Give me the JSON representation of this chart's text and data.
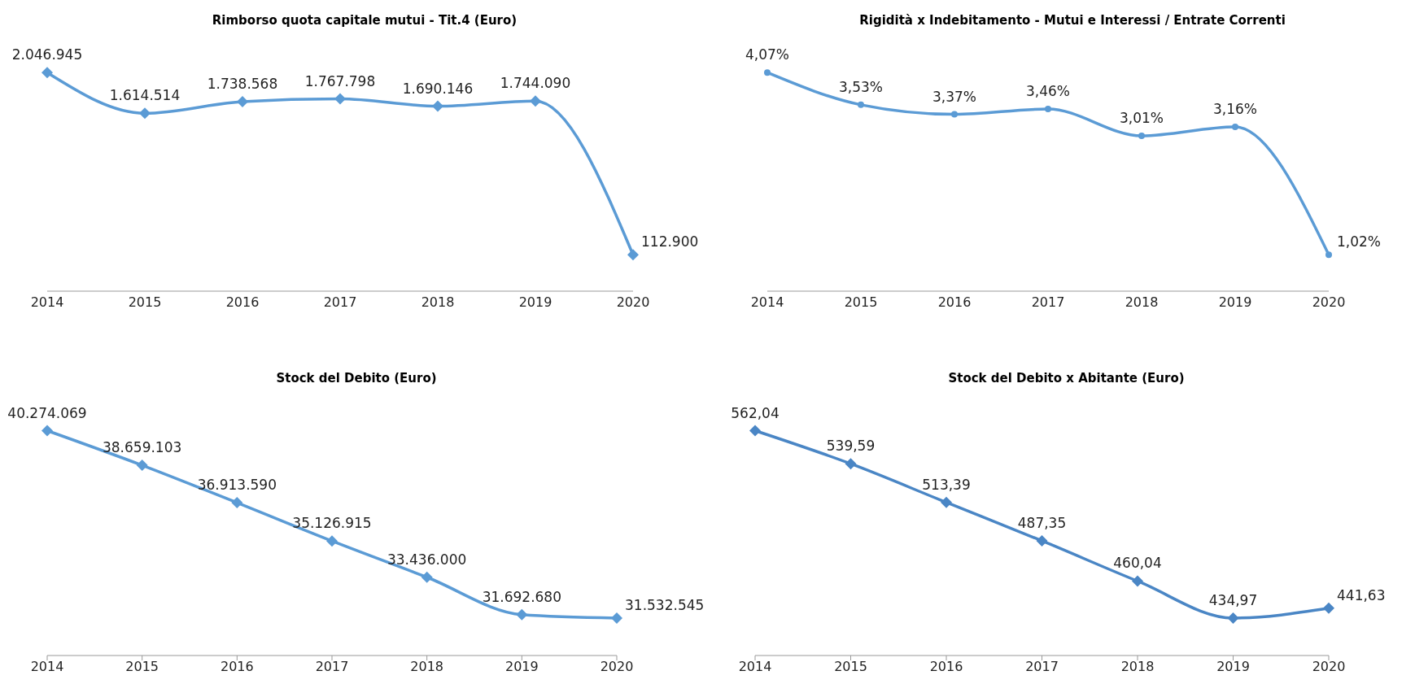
{
  "chart_data": [
    {
      "type": "line",
      "title": "Rimborso quota capitale mutui - Tit.4 (Euro)",
      "categories": [
        "2014",
        "2015",
        "2016",
        "2017",
        "2018",
        "2019",
        "2020"
      ],
      "marker": "diamond",
      "line_style": "solid",
      "series": [
        {
          "color": "#5b9bd5",
          "values": [
            2046945,
            1614514,
            1738568,
            1767798,
            1690146,
            1744090,
            112900
          ],
          "value_labels": [
            "2.046.945",
            "1.614.514",
            "1.738.568",
            "1.767.798",
            "1.690.146",
            "1.744.090",
            "112.900"
          ]
        }
      ]
    },
    {
      "type": "line",
      "title": "Rigidità x Indebitamento - Mutui e Interessi / Entrate Correnti",
      "categories": [
        "2014",
        "2015",
        "2016",
        "2017",
        "2018",
        "2019",
        "2020"
      ],
      "marker": "circle",
      "line_style": "solid",
      "series": [
        {
          "color": "#5b9bd5",
          "values": [
            4.07,
            3.53,
            3.37,
            3.46,
            3.01,
            3.16,
            1.02
          ],
          "value_labels": [
            "4,07%",
            "3,53%",
            "3,37%",
            "3,46%",
            "3,01%",
            "3,16%",
            "1,02%"
          ]
        }
      ]
    },
    {
      "type": "line",
      "title": "Stock del Debito (Euro)",
      "categories": [
        "2014",
        "2015",
        "2016",
        "2017",
        "2018",
        "2019",
        "2020"
      ],
      "marker": "diamond",
      "line_style": "solid",
      "series": [
        {
          "color": "#5b9bd5",
          "values": [
            40274069,
            38659103,
            36913590,
            35126915,
            33436000,
            31692680,
            31532545
          ],
          "value_labels": [
            "40.274.069",
            "38.659.103",
            "36.913.590",
            "35.126.915",
            "33.436.000",
            "31.692.680",
            "31.532.545"
          ]
        }
      ]
    },
    {
      "type": "line",
      "title": "Stock del Debito x Abitante (Euro)",
      "categories": [
        "2014",
        "2015",
        "2016",
        "2017",
        "2018",
        "2019",
        "2020"
      ],
      "marker": "diamond",
      "line_style": "solid",
      "series": [
        {
          "color": "#4a86c5",
          "values": [
            562.04,
            539.59,
            513.39,
            487.35,
            460.04,
            434.97,
            441.63
          ],
          "value_labels": [
            "562,04",
            "539,59",
            "513,39",
            "487,35",
            "460,04",
            "434,97",
            "441,63"
          ]
        }
      ]
    }
  ]
}
